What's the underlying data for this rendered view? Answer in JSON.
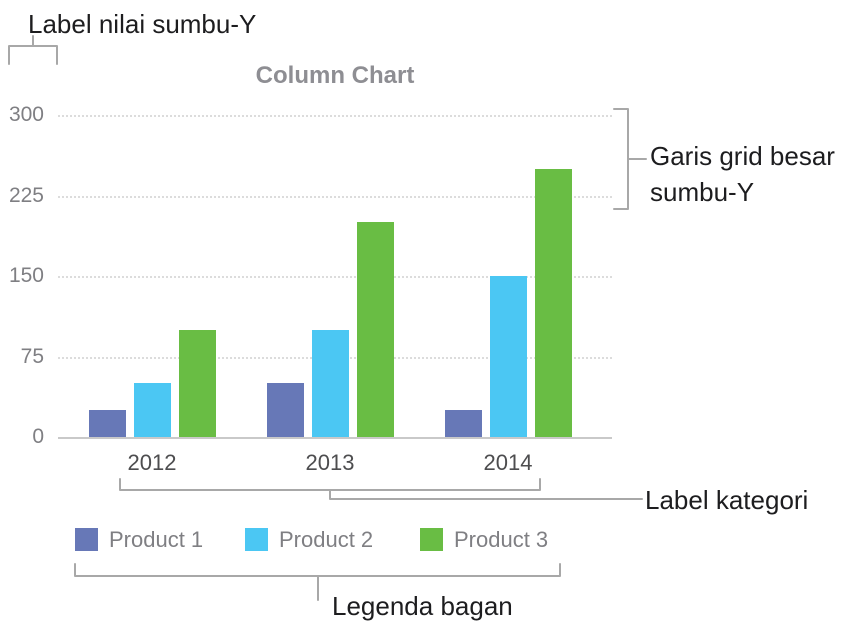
{
  "annotations": {
    "y_value_label": "Label nilai sumbu-Y",
    "major_gridlines": "Garis grid besar sumbu-Y",
    "category_label": "Label kategori",
    "chart_legend": "Legenda bagan"
  },
  "chart_data": {
    "type": "bar",
    "title": "Column Chart",
    "categories": [
      "2012",
      "2013",
      "2014"
    ],
    "series": [
      {
        "name": "Product 1",
        "color": "#6778b7",
        "values": [
          25,
          50,
          25
        ]
      },
      {
        "name": "Product 2",
        "color": "#4bc7f3",
        "values": [
          50,
          100,
          150
        ]
      },
      {
        "name": "Product 3",
        "color": "#69bd44",
        "values": [
          100,
          200,
          250
        ]
      }
    ],
    "xlabel": "",
    "ylabel": "",
    "ylim": [
      0,
      300
    ],
    "y_ticks": [
      300,
      225,
      150,
      75,
      0
    ],
    "grid": "dotted horizontal major gridlines, solid baseline at 0",
    "legend_position": "bottom"
  },
  "colors": {
    "title": "#8e8e93",
    "axis_text": "#7f7f83",
    "category_text": "#4d4d4f",
    "legend_text": "#7f7f83",
    "annotation_text": "#1d1d1f",
    "bracket": "#a8a8a8",
    "gridline": "#dcdcdc",
    "baseline": "#c9c9c9"
  }
}
